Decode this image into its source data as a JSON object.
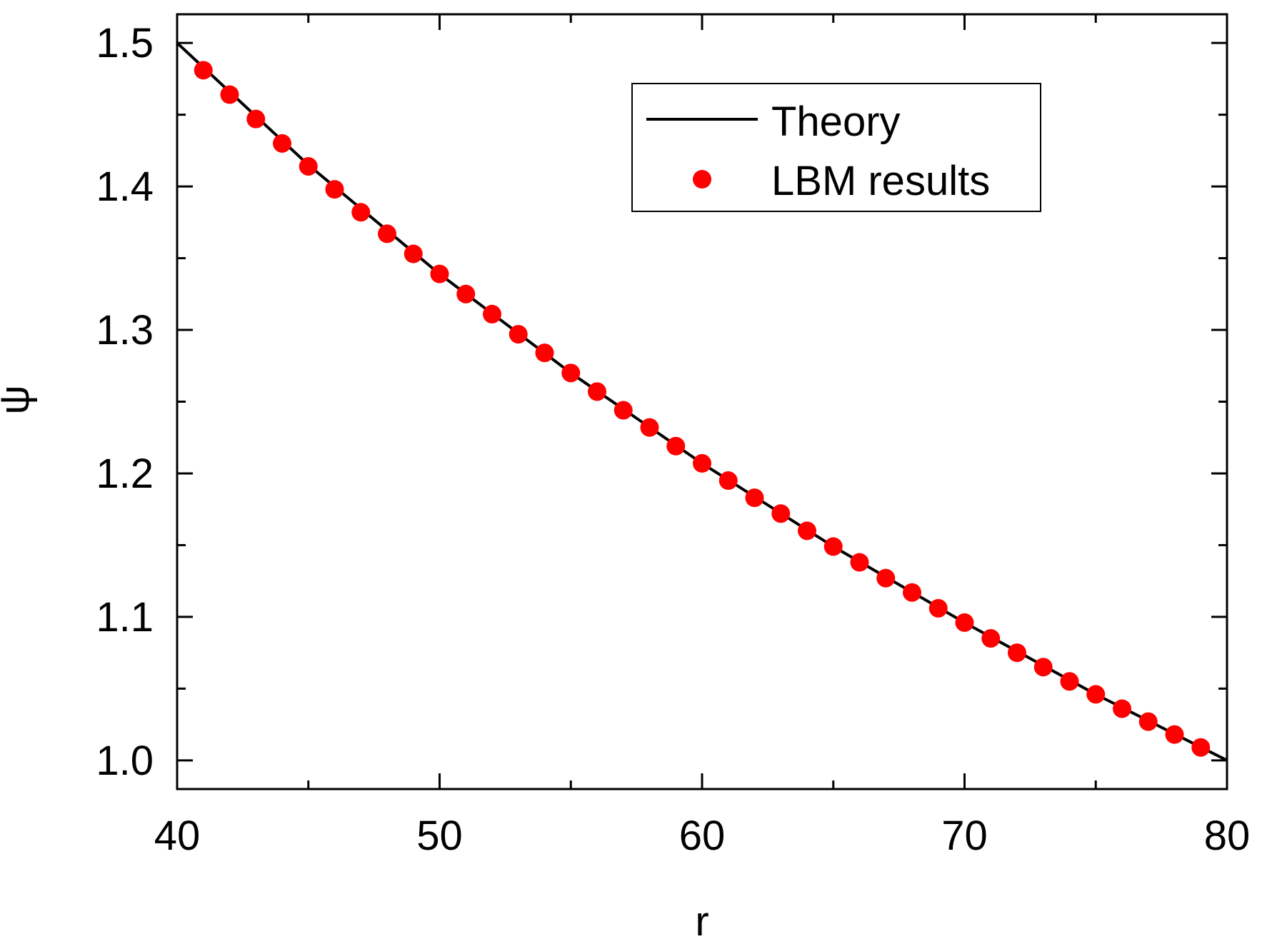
{
  "chart_data": {
    "type": "line",
    "title": "",
    "xlabel": "r",
    "ylabel": "ψ",
    "xlim": [
      40,
      80
    ],
    "ylim": [
      0.98,
      1.52
    ],
    "x_ticks": [
      40,
      50,
      60,
      70,
      80
    ],
    "x_tick_labels": [
      "40",
      "50",
      "60",
      "70",
      "80"
    ],
    "y_ticks": [
      1.0,
      1.1,
      1.2,
      1.3,
      1.4,
      1.5
    ],
    "y_tick_labels": [
      "1.0",
      "1.1",
      "1.2",
      "1.3",
      "1.4",
      "1.5"
    ],
    "grid": false,
    "legend_position": "top-right",
    "series": [
      {
        "name": "Theory",
        "kind": "line",
        "color": "#000000",
        "x": [
          40,
          45,
          50,
          55,
          60,
          65,
          70,
          75,
          80
        ],
        "y": [
          1.5,
          1.415,
          1.339,
          1.27,
          1.207,
          1.149,
          1.096,
          1.046,
          1.0
        ]
      },
      {
        "name": "LBM results",
        "kind": "scatter",
        "color": "#ff0000",
        "x": [
          41,
          42,
          43,
          44,
          45,
          46,
          47,
          48,
          49,
          50,
          51,
          52,
          53,
          54,
          55,
          56,
          57,
          58,
          59,
          60,
          61,
          62,
          63,
          64,
          65,
          66,
          67,
          68,
          69,
          70,
          71,
          72,
          73,
          74,
          75,
          76,
          77,
          78,
          79
        ],
        "y": [
          1.481,
          1.464,
          1.447,
          1.43,
          1.414,
          1.398,
          1.382,
          1.367,
          1.353,
          1.339,
          1.325,
          1.311,
          1.297,
          1.284,
          1.27,
          1.257,
          1.244,
          1.232,
          1.219,
          1.207,
          1.195,
          1.183,
          1.172,
          1.16,
          1.149,
          1.138,
          1.127,
          1.117,
          1.106,
          1.096,
          1.085,
          1.075,
          1.065,
          1.055,
          1.046,
          1.036,
          1.027,
          1.018,
          1.009
        ]
      }
    ]
  }
}
